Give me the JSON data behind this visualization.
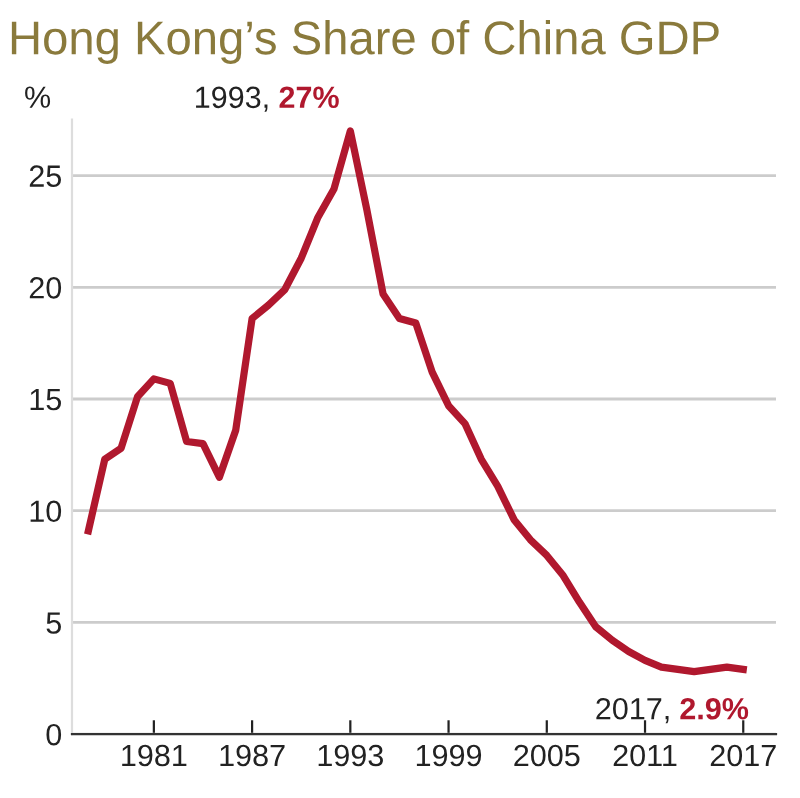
{
  "chart_data": {
    "type": "line",
    "title": "Hong Kong’s Share of China GDP",
    "ylabel": "%",
    "x": [
      1977,
      1978,
      1979,
      1980,
      1981,
      1982,
      1983,
      1984,
      1985,
      1986,
      1987,
      1988,
      1989,
      1990,
      1991,
      1992,
      1993,
      1994,
      1995,
      1996,
      1997,
      1998,
      1999,
      2000,
      2001,
      2002,
      2003,
      2004,
      2005,
      2006,
      2007,
      2008,
      2009,
      2010,
      2011,
      2012,
      2013,
      2014,
      2015,
      2016,
      2017
    ],
    "series": [
      {
        "color": "#b0182e",
        "values": [
          9.1,
          12.3,
          12.8,
          15.1,
          15.9,
          15.7,
          13.1,
          13.0,
          11.5,
          13.6,
          18.6,
          19.2,
          19.9,
          21.3,
          23.1,
          24.4,
          27,
          23.5,
          19.7,
          18.6,
          18.4,
          16.2,
          14.7,
          13.9,
          12.3,
          11.1,
          9.6,
          8.7,
          8.0,
          7.1,
          5.9,
          4.8,
          4.2,
          3.7,
          3.3,
          3.0,
          2.9,
          2.8,
          2.9,
          3.0,
          2.9
        ]
      }
    ],
    "xlim": [
      1976,
      2019
    ],
    "xticks": [
      1981,
      1987,
      1993,
      1999,
      2005,
      2011,
      2017
    ],
    "ylim": [
      0,
      27.5
    ],
    "yticks": [
      0,
      5,
      10,
      15,
      20,
      25
    ],
    "grid": "y",
    "legend": false,
    "marker": "none",
    "line_style": "solid",
    "annotations": [
      {
        "text": "1993, 27%",
        "x": 1993,
        "y": 27
      },
      {
        "text": "2017, 2.9%",
        "x": 2017,
        "y": 2.9
      }
    ]
  }
}
